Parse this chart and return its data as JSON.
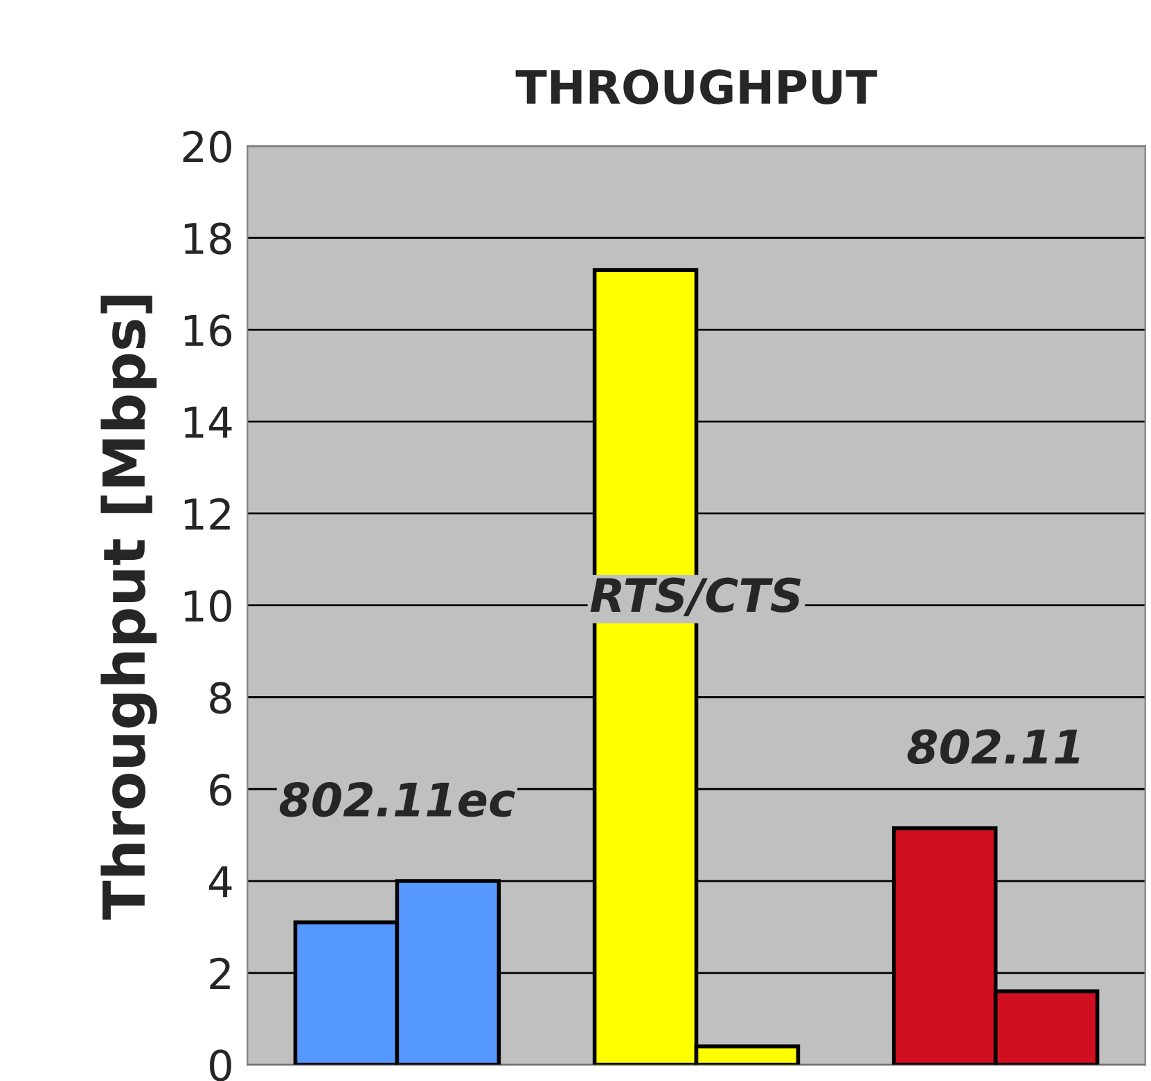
{
  "chart_data": {
    "type": "bar",
    "title": "THROUGHPUT",
    "ylabel": "Throughput [Mbps]",
    "categories": [
      null,
      null,
      null
    ],
    "series": [
      {
        "colors": [
          "#5599ff",
          "#ffff00",
          "#d01020"
        ],
        "values": [
          3.1,
          17.3,
          5.15
        ]
      },
      {
        "colors": [
          "#5599ff",
          "#ffff00",
          "#d01020"
        ],
        "values": [
          4.0,
          0.4,
          1.6
        ]
      }
    ],
    "annotations": [
      "802.11ec",
      "RTS/CTS",
      "802.11"
    ],
    "ylim": [
      0,
      20
    ],
    "yticks": [
      0,
      2,
      4,
      6,
      8,
      10,
      12,
      14,
      16,
      18,
      20
    ],
    "grid": "y",
    "legend": false
  }
}
